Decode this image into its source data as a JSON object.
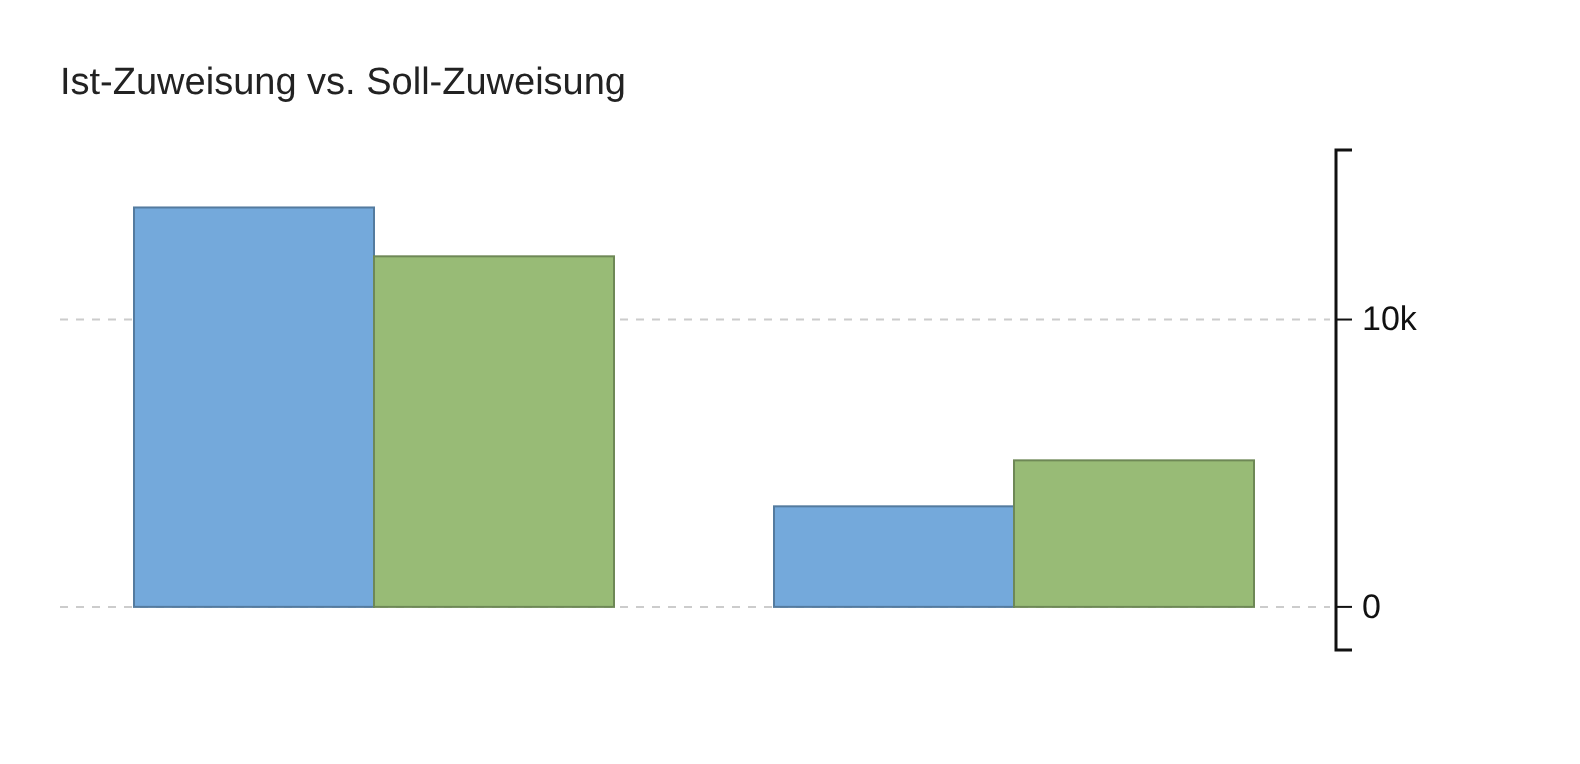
{
  "chart_data": {
    "type": "bar",
    "title": "Ist-Zuweisung vs. Soll-Zuweisung",
    "categories": [
      null,
      null
    ],
    "series": [
      {
        "color": "#74a9db",
        "values": [
          13900,
          3500
        ]
      },
      {
        "color": "#98bb76",
        "values": [
          12200,
          5100
        ]
      }
    ],
    "ylim": [
      -1500,
      15900
    ],
    "yticks": [
      0,
      {
        "value": 10000,
        "label": "10k"
      }
    ],
    "grid": "y"
  }
}
